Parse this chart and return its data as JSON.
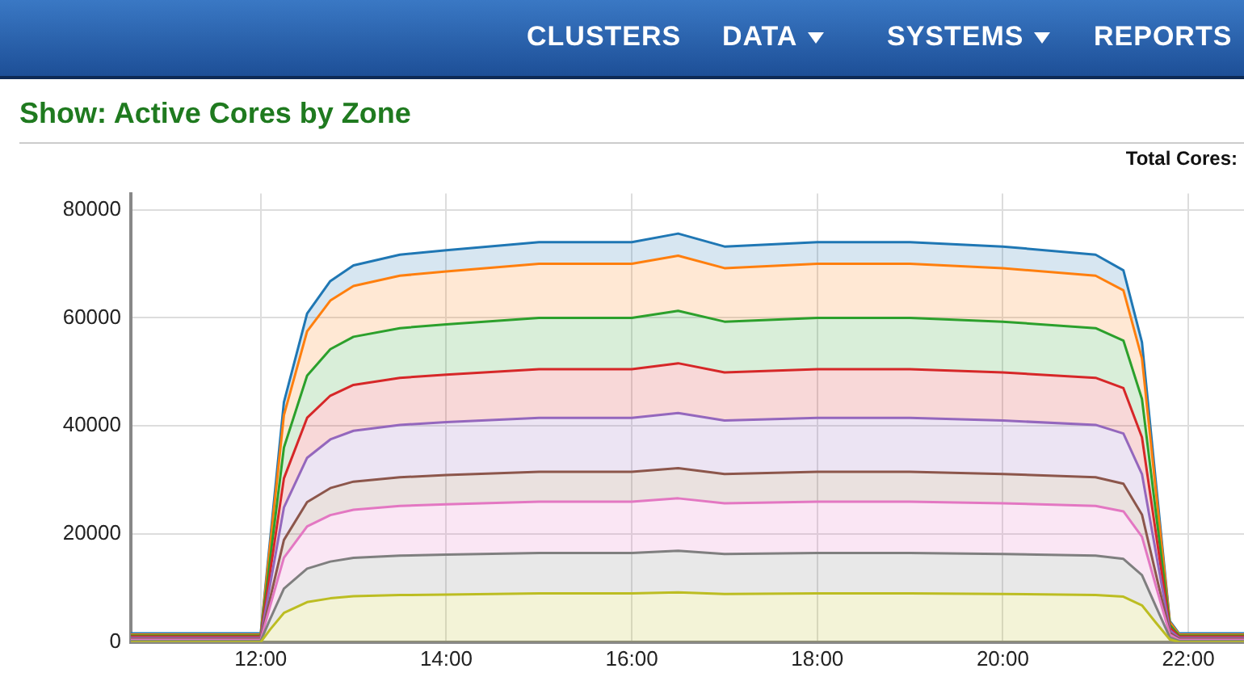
{
  "chart_data": {
    "type": "area",
    "title": "Show: Active Cores by Zone",
    "annotations": [
      "CLUSTERS",
      "DATA",
      "SYSTEMS",
      "REPORTS",
      "Total Cores:"
    ],
    "x": [
      10.6,
      12.0,
      12.1,
      12.25,
      12.5,
      12.75,
      13,
      13.5,
      14,
      15,
      16,
      16.5,
      17,
      18,
      19,
      20,
      21,
      21.3,
      21.5,
      21.65,
      21.8,
      21.9,
      22.6
    ],
    "stacked": true,
    "grid": true,
    "legend": false,
    "marker": "none",
    "xlim": [
      10.6,
      22.6
    ],
    "xticks": [
      {
        "value": 12,
        "label": "12:00"
      },
      {
        "value": 14,
        "label": "14:00"
      },
      {
        "value": 16,
        "label": "16:00"
      },
      {
        "value": 18,
        "label": "18:00"
      },
      {
        "value": 20,
        "label": "20:00"
      },
      {
        "value": 22,
        "label": "22:00"
      }
    ],
    "ylim": [
      0,
      83000
    ],
    "yticks": [
      0,
      20000,
      40000,
      60000,
      80000
    ],
    "series": [
      {
        "color": "#bcbd22",
        "values": [
          0,
          0,
          2300,
          5400,
          7400,
          8100,
          8500,
          8700,
          8800,
          9000,
          9000,
          9200,
          8900,
          9000,
          9000,
          8900,
          8700,
          8400,
          6800,
          3600,
          500,
          0,
          0
        ]
      },
      {
        "color": "#7f7f7f",
        "values": [
          200,
          200,
          1900,
          4500,
          6200,
          6800,
          7100,
          7300,
          7400,
          7500,
          7500,
          7700,
          7400,
          7500,
          7500,
          7400,
          7300,
          7000,
          5600,
          3000,
          400,
          200,
          200
        ]
      },
      {
        "color": "#e377c2",
        "values": [
          200,
          200,
          2400,
          5700,
          7800,
          8600,
          8900,
          9200,
          9300,
          9500,
          9500,
          9700,
          9400,
          9500,
          9500,
          9400,
          9200,
          8800,
          7100,
          3800,
          500,
          200,
          200
        ]
      },
      {
        "color": "#8c564b",
        "values": [
          200,
          200,
          1400,
          3300,
          4500,
          5000,
          5200,
          5300,
          5400,
          5500,
          5500,
          5600,
          5400,
          5500,
          5500,
          5400,
          5300,
          5100,
          4100,
          2200,
          300,
          200,
          200
        ]
      },
      {
        "color": "#9467bd",
        "values": [
          200,
          200,
          2500,
          6000,
          8200,
          9000,
          9400,
          9700,
          9800,
          10000,
          10000,
          10200,
          9900,
          10000,
          10000,
          9900,
          9700,
          9300,
          7500,
          4000,
          500,
          200,
          200
        ]
      },
      {
        "color": "#d62728",
        "values": [
          200,
          200,
          2300,
          5400,
          7400,
          8100,
          8500,
          8700,
          8800,
          9000,
          9000,
          9200,
          8900,
          9000,
          9000,
          8900,
          8700,
          8400,
          6800,
          3600,
          500,
          200,
          200
        ]
      },
      {
        "color": "#2ca02c",
        "values": [
          200,
          200,
          2400,
          5700,
          7800,
          8600,
          8900,
          9200,
          9300,
          9500,
          9500,
          9700,
          9400,
          9500,
          9500,
          9400,
          9200,
          8800,
          7100,
          3800,
          500,
          200,
          200
        ]
      },
      {
        "color": "#ff7f0e",
        "values": [
          200,
          200,
          2500,
          6000,
          8200,
          9000,
          9400,
          9700,
          9800,
          10000,
          10000,
          10200,
          9900,
          10000,
          10000,
          9900,
          9700,
          9300,
          7500,
          4000,
          500,
          200,
          200
        ]
      },
      {
        "color": "#1f77b4",
        "values": [
          200,
          200,
          1000,
          2400,
          3300,
          3600,
          3800,
          3900,
          3900,
          4000,
          4000,
          4100,
          4000,
          4000,
          4000,
          4000,
          3900,
          3700,
          3000,
          1600,
          200,
          200,
          200
        ]
      }
    ]
  }
}
